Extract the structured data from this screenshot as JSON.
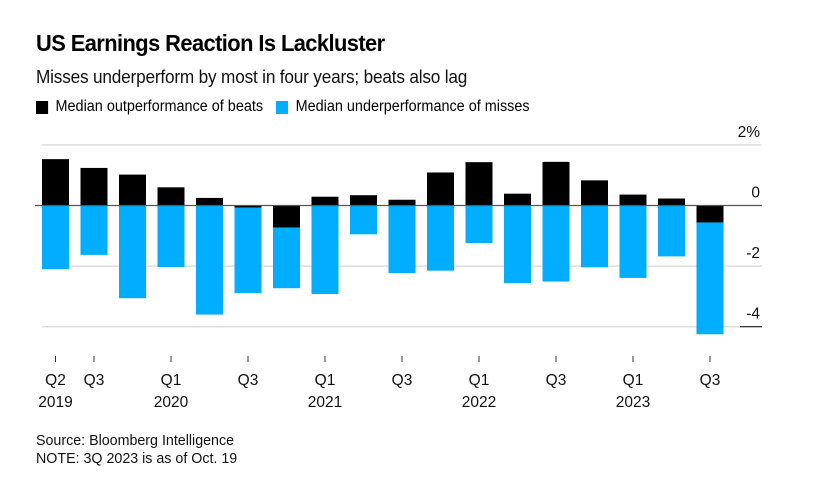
{
  "header": {
    "title": "US Earnings Reaction Is Lackluster",
    "subtitle": "Misses underperform by most in four years; beats also lag"
  },
  "legend": [
    {
      "label": "Median outperformance of beats",
      "color": "#000000"
    },
    {
      "label": "Median underperformance of misses",
      "color": "#00adfe"
    }
  ],
  "footer": {
    "source": "Source: Bloomberg Intelligence",
    "note": "NOTE: 3Q 2023 is as of Oct. 19"
  },
  "chart_data": {
    "type": "bar",
    "stacked": true,
    "title": "US Earnings Reaction Is Lackluster",
    "subtitle": "Misses underperform by most in four years; beats also lag",
    "xlabel": "",
    "ylabel": "%",
    "ylim": [
      -4.3,
      2
    ],
    "yticks": [
      2,
      0,
      -2,
      -4
    ],
    "ytick_labels": [
      "2%",
      "0",
      "-2",
      "-4"
    ],
    "y_axis_side": "right",
    "grid": true,
    "legend_position": "top-left",
    "categories": [
      "Q2 2019",
      "Q3 2019",
      "Q4 2019",
      "Q1 2020",
      "Q2 2020",
      "Q3 2020",
      "Q4 2020",
      "Q1 2021",
      "Q2 2021",
      "Q3 2021",
      "Q4 2021",
      "Q1 2022",
      "Q2 2022",
      "Q3 2022",
      "Q4 2022",
      "Q1 2023",
      "Q2 2023",
      "Q3 2023"
    ],
    "x_tick_labels": [
      {
        "index": 0,
        "quarter": "Q2",
        "year": "2019"
      },
      {
        "index": 1,
        "quarter": "Q3",
        "year": ""
      },
      {
        "index": 3,
        "quarter": "Q1",
        "year": "2020"
      },
      {
        "index": 5,
        "quarter": "Q3",
        "year": ""
      },
      {
        "index": 7,
        "quarter": "Q1",
        "year": "2021"
      },
      {
        "index": 9,
        "quarter": "Q3",
        "year": ""
      },
      {
        "index": 11,
        "quarter": "Q1",
        "year": "2022"
      },
      {
        "index": 13,
        "quarter": "Q3",
        "year": ""
      },
      {
        "index": 15,
        "quarter": "Q1",
        "year": "2023"
      },
      {
        "index": 17,
        "quarter": "Q3",
        "year": ""
      }
    ],
    "series": [
      {
        "name": "Median outperformance of beats",
        "color": "#000000",
        "values": [
          1.53,
          1.24,
          1.02,
          0.6,
          0.25,
          -0.07,
          -0.73,
          0.29,
          0.34,
          0.19,
          1.09,
          1.43,
          0.39,
          1.44,
          0.83,
          0.36,
          0.23,
          -0.56
        ]
      },
      {
        "name": "Median underperformance of misses",
        "color": "#00adfe",
        "values": [
          -2.1,
          -1.63,
          -3.06,
          -2.03,
          -3.6,
          -2.82,
          -2.0,
          -2.92,
          -0.95,
          -2.23,
          -2.15,
          -1.24,
          -2.56,
          -2.51,
          -2.04,
          -2.39,
          -1.68,
          -3.69
        ]
      }
    ]
  }
}
